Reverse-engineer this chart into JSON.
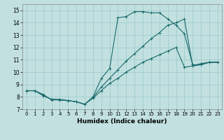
{
  "xlabel": "Humidex (Indice chaleur)",
  "background_color": "#c2e0e0",
  "grid_color": "#a0cccc",
  "line_color": "#1a6b6b",
  "xlim": [
    -0.5,
    23.5
  ],
  "ylim": [
    7,
    15.5
  ],
  "xticks": [
    0,
    1,
    2,
    3,
    4,
    5,
    6,
    7,
    8,
    9,
    10,
    11,
    12,
    13,
    14,
    15,
    16,
    17,
    18,
    19,
    20,
    21,
    22,
    23
  ],
  "yticks": [
    7,
    8,
    9,
    10,
    11,
    12,
    13,
    14,
    15
  ],
  "line1_x": [
    0,
    1,
    2,
    3,
    4,
    5,
    6,
    7,
    8,
    9,
    10,
    11,
    12,
    13,
    14,
    15,
    16,
    17,
    18,
    19,
    20,
    21,
    22,
    23
  ],
  "line1_y": [
    8.5,
    8.5,
    8.2,
    7.75,
    7.75,
    7.7,
    7.6,
    7.4,
    8.0,
    9.5,
    10.3,
    14.4,
    14.5,
    14.9,
    14.9,
    14.8,
    14.8,
    14.3,
    13.8,
    13.1,
    10.6,
    10.6,
    10.8,
    10.8
  ],
  "line2_x": [
    0,
    1,
    2,
    3,
    4,
    5,
    6,
    7,
    8,
    9,
    10,
    11,
    12,
    13,
    14,
    15,
    16,
    17,
    18,
    19,
    20,
    21,
    22,
    23
  ],
  "line2_y": [
    8.5,
    8.5,
    8.1,
    7.8,
    7.8,
    7.7,
    7.6,
    7.4,
    7.95,
    8.8,
    9.5,
    10.2,
    10.9,
    11.5,
    12.1,
    12.7,
    13.2,
    13.8,
    14.0,
    14.3,
    10.5,
    10.7,
    10.8,
    10.8
  ],
  "line3_x": [
    0,
    1,
    2,
    3,
    4,
    5,
    6,
    7,
    8,
    9,
    10,
    11,
    12,
    13,
    14,
    15,
    16,
    17,
    18,
    19,
    20,
    21,
    22,
    23
  ],
  "line3_y": [
    8.5,
    8.5,
    8.1,
    7.8,
    7.75,
    7.7,
    7.6,
    7.4,
    7.9,
    8.5,
    9.1,
    9.5,
    10.0,
    10.4,
    10.8,
    11.1,
    11.4,
    11.7,
    12.0,
    10.4,
    10.5,
    10.6,
    10.8,
    10.8
  ]
}
